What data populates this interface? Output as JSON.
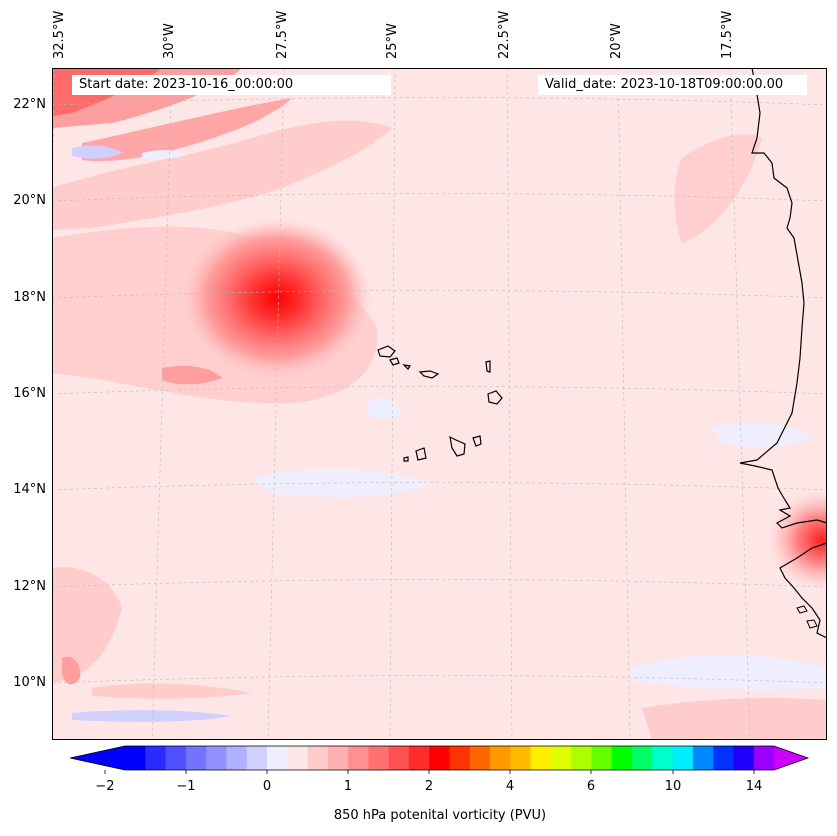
{
  "map": {
    "start_date_text": "Start date: 2023-10-16_00:00:00",
    "valid_date_text": "Valid_date: 2023-10-18T09:00:00.00",
    "lon_labels": [
      "32.5°W",
      "30°W",
      "27.5°W",
      "25°W",
      "22.5°W",
      "20°W",
      "17.5°W"
    ],
    "lat_labels": [
      "22°N",
      "20°N",
      "18°N",
      "16°N",
      "14°N",
      "12°N",
      "10°N"
    ],
    "background_color": "#ffe6e6",
    "coastline_color": "#000000"
  },
  "colorbar": {
    "label": "850 hPa potenital vorticity (PVU)",
    "tick_labels": [
      "−2",
      "−1",
      "0",
      "1",
      "2",
      "4",
      "6",
      "10",
      "14"
    ],
    "colors": [
      "#0000ff",
      "#2b2bff",
      "#5050ff",
      "#7373ff",
      "#9090ff",
      "#b0b0ff",
      "#d0d0ff",
      "#eeeeff",
      "#ffe6e6",
      "#ffcccc",
      "#ffb0b0",
      "#ff9090",
      "#ff7070",
      "#ff5050",
      "#ff2c2c",
      "#ff0000",
      "#ff3300",
      "#ff6600",
      "#ff9900",
      "#ffbb00",
      "#ffee00",
      "#ddff00",
      "#aaff00",
      "#66ff00",
      "#00ff00",
      "#00ff66",
      "#00ffcc",
      "#00eeff",
      "#0088ff",
      "#0033ff",
      "#2200ff",
      "#9900ff"
    ],
    "extend_low_color": "#0000ff",
    "extend_high_color": "#cc00ff"
  }
}
